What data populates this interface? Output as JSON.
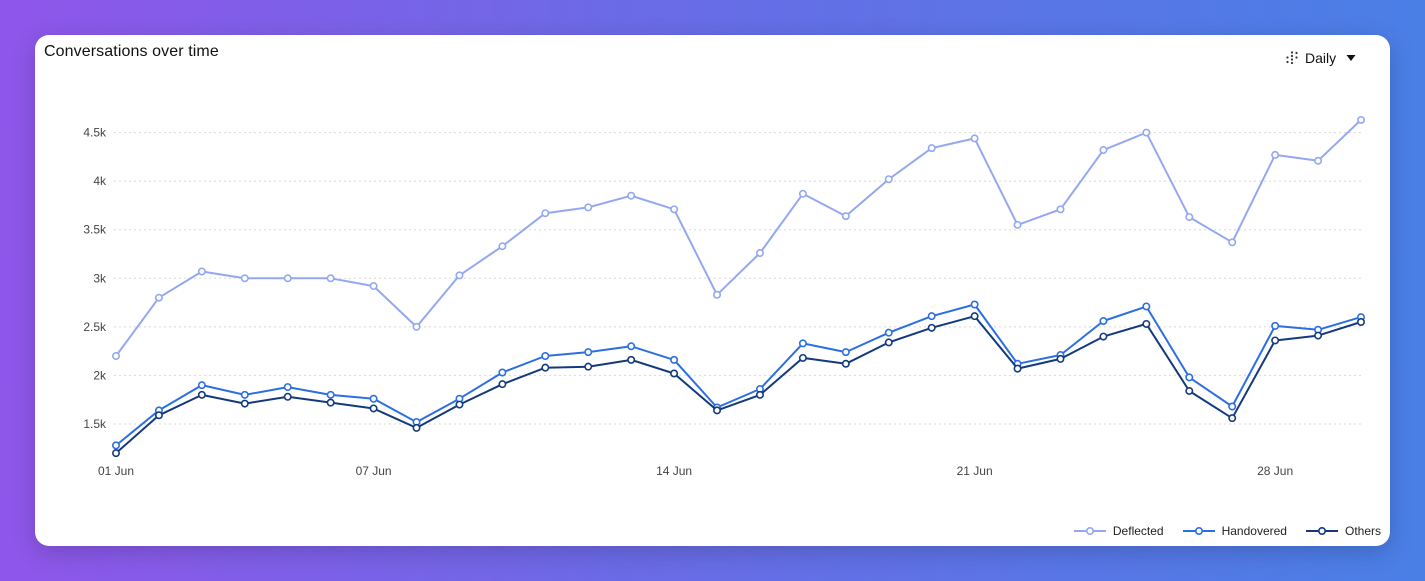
{
  "header": {
    "title": "Conversations over time",
    "period_label": "Daily",
    "period_icon": "dotted-grid-icon"
  },
  "colors": {
    "deflected": "#94a8f0",
    "handovered": "#2c6fe0",
    "others": "#143a7e",
    "grid": "#d8d8d8",
    "axis_text": "#444444"
  },
  "chart_data": {
    "type": "line",
    "title": "Conversations over time",
    "xlabel": "",
    "ylabel": "",
    "x": [
      "01 Jun",
      "02 Jun",
      "03 Jun",
      "04 Jun",
      "05 Jun",
      "06 Jun",
      "07 Jun",
      "08 Jun",
      "09 Jun",
      "10 Jun",
      "11 Jun",
      "12 Jun",
      "13 Jun",
      "14 Jun",
      "15 Jun",
      "16 Jun",
      "17 Jun",
      "18 Jun",
      "19 Jun",
      "20 Jun",
      "21 Jun",
      "22 Jun",
      "23 Jun",
      "24 Jun",
      "25 Jun",
      "26 Jun",
      "27 Jun",
      "28 Jun",
      "29 Jun",
      "30 Jun"
    ],
    "x_tick_labels": [
      {
        "index": 0,
        "label": "01 Jun"
      },
      {
        "index": 6,
        "label": "07 Jun"
      },
      {
        "index": 13,
        "label": "14 Jun"
      },
      {
        "index": 20,
        "label": "21 Jun"
      },
      {
        "index": 27,
        "label": "28 Jun"
      }
    ],
    "ylim": [
      1150,
      4650
    ],
    "y_ticks": [
      {
        "value": 1500,
        "label": "1.5k"
      },
      {
        "value": 2000,
        "label": "2k"
      },
      {
        "value": 2500,
        "label": "2.5k"
      },
      {
        "value": 3000,
        "label": "3k"
      },
      {
        "value": 3500,
        "label": "3.5k"
      },
      {
        "value": 4000,
        "label": "4k"
      },
      {
        "value": 4500,
        "label": "4.5k"
      }
    ],
    "grid": true,
    "legend_position": "bottom-right",
    "series": [
      {
        "name": "Deflected",
        "color_key": "deflected",
        "values": [
          2200,
          2800,
          3070,
          3000,
          3000,
          3000,
          2920,
          2500,
          3030,
          3330,
          3670,
          3730,
          3850,
          3710,
          2830,
          3260,
          3870,
          3640,
          4020,
          4340,
          4440,
          3550,
          3710,
          4320,
          4500,
          3630,
          3370,
          4270,
          4210,
          4630
        ]
      },
      {
        "name": "Handovered",
        "color_key": "handovered",
        "values": [
          1280,
          1640,
          1900,
          1800,
          1880,
          1800,
          1760,
          1520,
          1760,
          2030,
          2200,
          2240,
          2300,
          2160,
          1670,
          1860,
          2330,
          2240,
          2440,
          2610,
          2730,
          2120,
          2210,
          2560,
          2710,
          1980,
          1680,
          2510,
          2470,
          2600
        ]
      },
      {
        "name": "Others",
        "color_key": "others",
        "values": [
          1200,
          1590,
          1800,
          1710,
          1780,
          1720,
          1660,
          1460,
          1700,
          1910,
          2080,
          2090,
          2160,
          2020,
          1640,
          1800,
          2180,
          2120,
          2340,
          2490,
          2610,
          2070,
          2170,
          2400,
          2530,
          1840,
          1560,
          2360,
          2410,
          2550
        ]
      }
    ]
  }
}
